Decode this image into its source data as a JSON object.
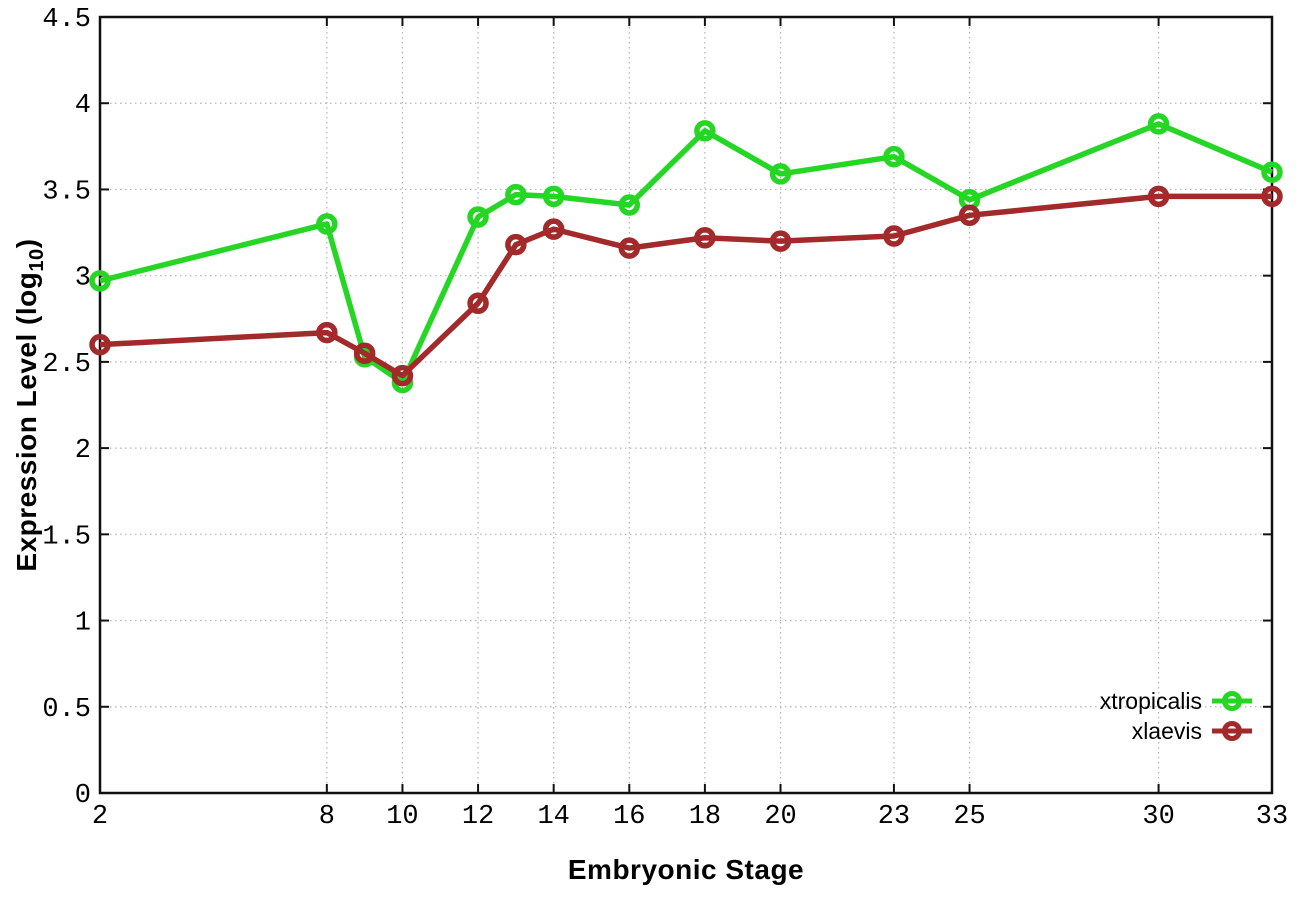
{
  "chart_data": {
    "type": "line",
    "title": "",
    "xlabel": "Embryonic Stage",
    "ylabel": {
      "base": "Expression Level (log",
      "sub": "10",
      "close": ")"
    },
    "xlim": [
      2,
      33
    ],
    "ylim": [
      0,
      4.5
    ],
    "grid": true,
    "legend_position": "bottom-right",
    "x": [
      2,
      8,
      9,
      10,
      12,
      13,
      14,
      16,
      18,
      20,
      23,
      25,
      30,
      33
    ],
    "xticks": [
      2,
      8,
      10,
      12,
      14,
      16,
      18,
      20,
      23,
      25,
      30,
      33
    ],
    "xtick_labels": [
      "2",
      "8",
      "10",
      "12",
      "14",
      "16",
      "18",
      "20",
      "23",
      "25",
      "30",
      "33"
    ],
    "yticks": [
      0,
      0.5,
      1,
      1.5,
      2,
      2.5,
      3,
      3.5,
      4,
      4.5
    ],
    "ytick_labels": [
      "0",
      "0.5",
      "1",
      "1.5",
      "2",
      "2.5",
      "3",
      "3.5",
      "4",
      "4.5"
    ],
    "series": [
      {
        "name": "xtropicalis",
        "color": "#25d625",
        "values": [
          2.97,
          3.3,
          2.53,
          2.38,
          3.34,
          3.47,
          3.46,
          3.41,
          3.84,
          3.59,
          3.69,
          3.44,
          3.88,
          3.6
        ]
      },
      {
        "name": "xlaevis",
        "color": "#a22a2a",
        "values": [
          2.6,
          2.67,
          2.55,
          2.42,
          2.84,
          3.18,
          3.27,
          3.16,
          3.22,
          3.2,
          3.23,
          3.35,
          3.46,
          3.46
        ]
      }
    ]
  },
  "colors": {
    "background": "#ffffff",
    "axis": "#111111",
    "grid": "#b3b3b3",
    "text": "#000000"
  }
}
